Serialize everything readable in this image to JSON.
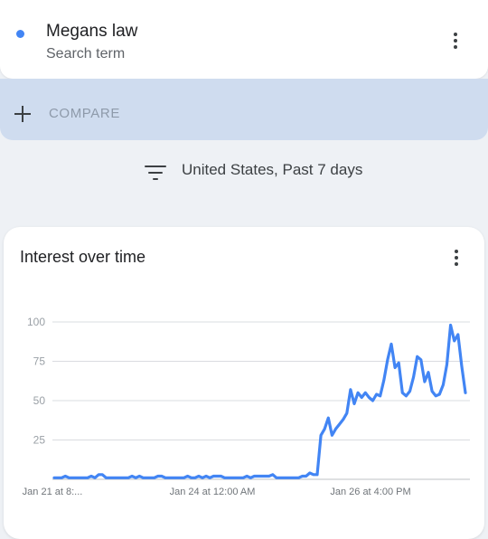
{
  "search_term": {
    "name": "Megans law",
    "subtitle": "Search term",
    "color": "#4285f4",
    "menu_icon": "more-vert-icon"
  },
  "compare": {
    "label": "COMPARE",
    "icon": "plus-icon"
  },
  "filter": {
    "icon": "filter-list-icon",
    "label": "United States, Past 7 days"
  },
  "interest_card": {
    "title": "Interest over time",
    "menu_icon": "more-vert-icon"
  },
  "chart_data": {
    "type": "line",
    "title": "Interest over time",
    "ylim": [
      0,
      100
    ],
    "yticks": [
      25,
      50,
      75,
      100
    ],
    "grid": true,
    "xtick_labels": [
      "Jan 21 at 8:...",
      "Jan 24 at 12:00 AM",
      "Jan 26 at 4:00 PM"
    ],
    "line_color": "#4285f4",
    "series": [
      {
        "values": [
          1,
          1,
          1,
          2,
          1,
          1,
          1,
          1,
          1,
          1,
          2,
          1,
          3,
          3,
          1,
          1,
          1,
          1,
          1,
          1,
          1,
          2,
          1,
          2,
          1,
          1,
          1,
          1,
          2,
          2,
          1,
          1,
          1,
          1,
          1,
          1,
          2,
          1,
          1,
          2,
          1,
          2,
          1,
          2,
          2,
          2,
          1,
          1,
          1,
          1,
          1,
          1,
          2,
          1,
          2,
          2,
          2,
          2,
          2,
          3,
          1,
          1,
          1,
          1,
          1,
          1,
          1,
          2,
          2,
          4,
          3,
          3,
          28,
          32,
          39,
          28,
          32,
          35,
          38,
          42,
          57,
          48,
          55,
          52,
          55,
          52,
          50,
          54,
          53,
          63,
          76,
          86,
          71,
          74,
          55,
          53,
          56,
          65,
          78,
          76,
          62,
          68,
          56,
          53,
          54,
          60,
          73,
          98,
          88,
          92,
          72,
          55
        ]
      }
    ]
  }
}
